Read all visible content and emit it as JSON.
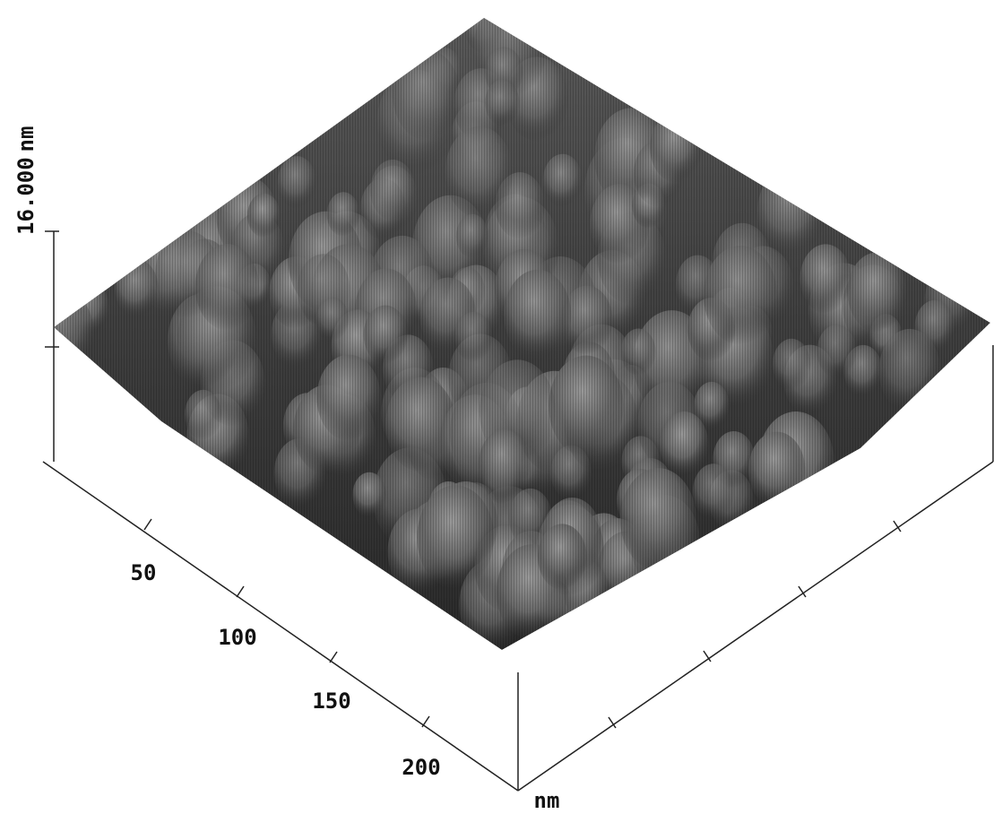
{
  "z_axis": {
    "label": "16.000",
    "unit": "nm"
  },
  "x_axis": {
    "tick_labels": [
      "50",
      "100",
      "150",
      "200"
    ],
    "unit": "nm"
  }
}
